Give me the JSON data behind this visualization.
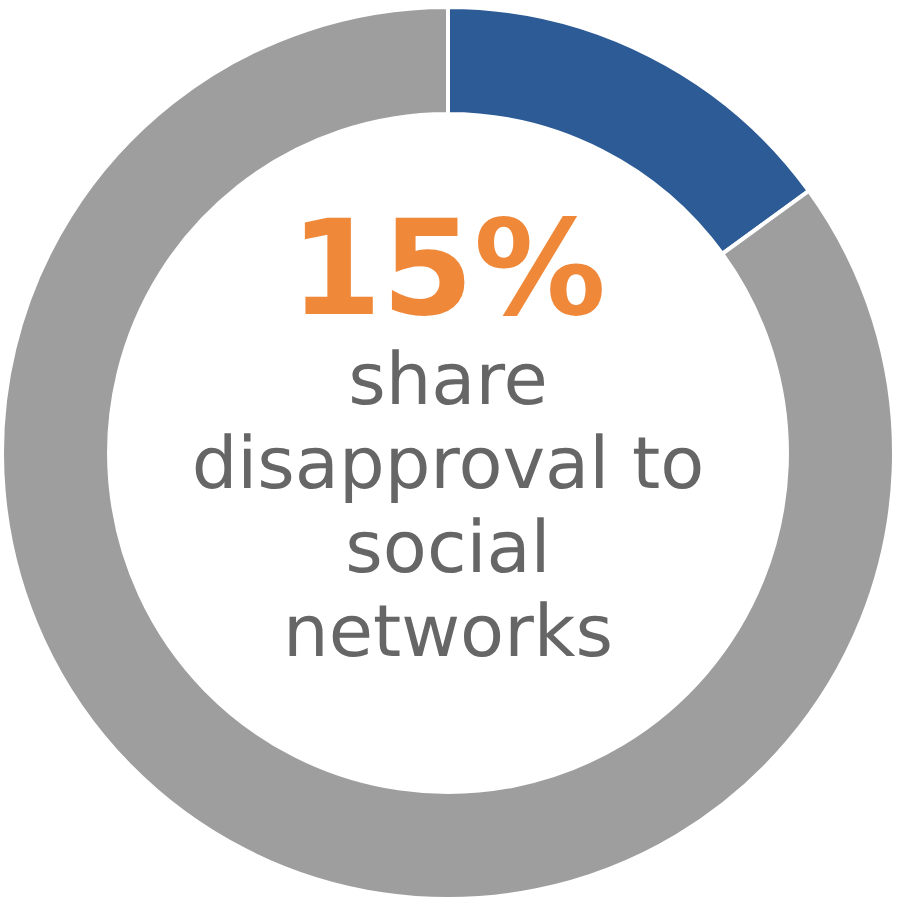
{
  "chart_data": {
    "type": "donut",
    "categories": [
      null,
      null
    ],
    "values": [
      15,
      85
    ],
    "colors": [
      "#2d5b96",
      "#9e9e9e"
    ],
    "legend": false,
    "annotations": [
      "15%",
      "share disapproval to social networks"
    ]
  }
}
